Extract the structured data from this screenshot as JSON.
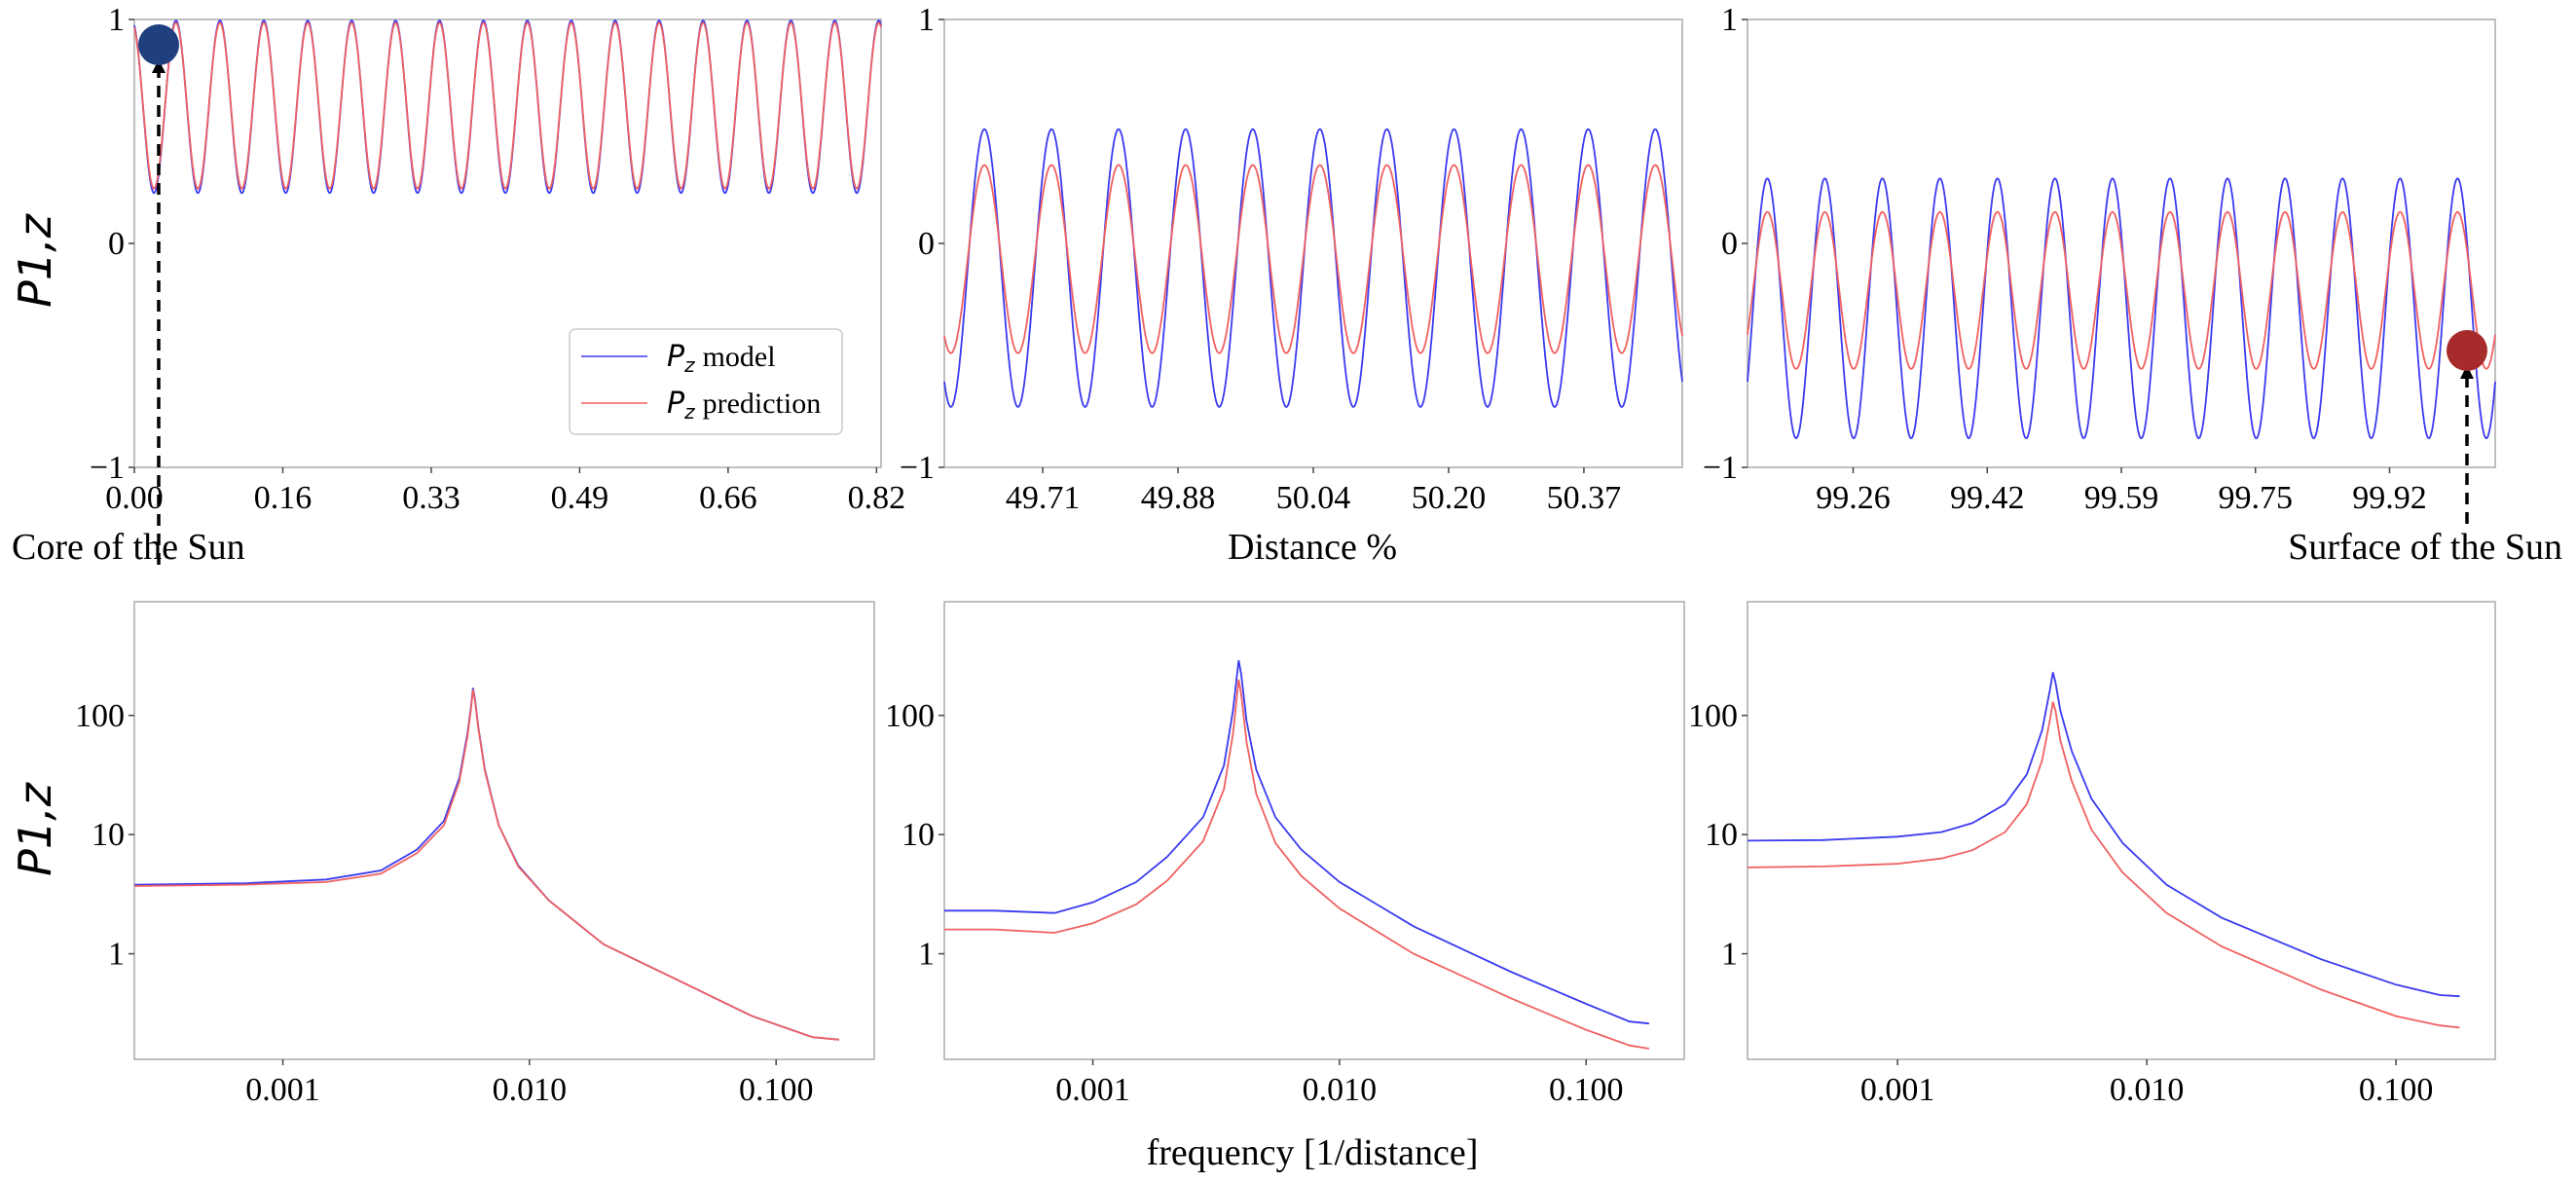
{
  "figure": {
    "ylabel_top": "P1,z",
    "ylabel_bottom": "P1,z",
    "ylabel_main": "P",
    "ylabel_sub": "1,z",
    "xlabel_top": "Distance %",
    "xlabel_bottom": "frequency [1/distance]",
    "annotation_core": "Core of the Sun",
    "annotation_surface": "Surface of the Sun",
    "colors": {
      "model": "#3a3af0",
      "prediction": "#f06060",
      "core_marker": "#1f3f7f",
      "surface_marker": "#a82b2b"
    }
  },
  "legend": {
    "model_label": "model",
    "prediction_label": "prediction",
    "symbol_main": "P",
    "symbol_sub": "z"
  },
  "chart_data": [
    {
      "type": "line",
      "id": "top-left",
      "xlim": [
        0.0,
        0.825
      ],
      "ylim": [
        -1,
        1
      ],
      "xticks": [
        "0.00",
        "0.16",
        "0.33",
        "0.49",
        "0.66",
        "0.82"
      ],
      "xtick_values": [
        0.0,
        0.164,
        0.328,
        0.492,
        0.656,
        0.82
      ],
      "yticks": [
        "-1",
        "0",
        "1"
      ],
      "ytick_values": [
        -1,
        0,
        1
      ],
      "series": [
        {
          "name": "Pz model",
          "center": 0.61,
          "amplitude": 0.385,
          "cycles": 17,
          "phase": 1.9
        },
        {
          "name": "Pz prediction",
          "center": 0.615,
          "amplitude": 0.37,
          "cycles": 17,
          "phase": 1.9
        }
      ]
    },
    {
      "type": "line",
      "id": "top-middle",
      "xlim": [
        49.59,
        50.49
      ],
      "ylim": [
        -1,
        1
      ],
      "xticks": [
        "49.71",
        "49.88",
        "50.04",
        "50.20",
        "50.37"
      ],
      "xtick_values": [
        49.71,
        49.875,
        50.04,
        50.205,
        50.37
      ],
      "yticks": [
        "-1",
        "0",
        "1"
      ],
      "ytick_values": [
        -1,
        0,
        1
      ],
      "series": [
        {
          "name": "Pz model",
          "center": -0.11,
          "amplitude": 0.62,
          "cycles": 11,
          "phase": 4.1
        },
        {
          "name": "Pz prediction",
          "center": -0.07,
          "amplitude": 0.42,
          "cycles": 11,
          "phase": 4.1
        }
      ]
    },
    {
      "type": "line",
      "id": "top-right",
      "xlim": [
        99.13,
        100.05
      ],
      "ylim": [
        -1,
        1
      ],
      "xticks": [
        "99.26",
        "99.42",
        "99.59",
        "99.75",
        "99.92"
      ],
      "xtick_values": [
        99.26,
        99.425,
        99.59,
        99.755,
        99.92
      ],
      "yticks": [
        "-1",
        "0",
        "1"
      ],
      "ytick_values": [
        -1,
        0,
        1
      ],
      "series": [
        {
          "name": "Pz model",
          "center": -0.29,
          "amplitude": 0.58,
          "cycles": 13,
          "phase": -0.6
        },
        {
          "name": "Pz prediction",
          "center": -0.21,
          "amplitude": 0.35,
          "cycles": 13,
          "phase": -0.6
        }
      ]
    },
    {
      "type": "line",
      "id": "bottom-left",
      "scale": "log",
      "xlim": [
        0.00025,
        0.25
      ],
      "ylim": [
        0.13,
        900
      ],
      "xticks": [
        "0.001",
        "0.010",
        "0.100"
      ],
      "xtick_values": [
        0.001,
        0.01,
        0.1
      ],
      "yticks": [
        "1",
        "10",
        "100"
      ],
      "ytick_values": [
        1,
        10,
        100
      ],
      "series": [
        {
          "name": "Pz model",
          "points": [
            [
              0.00025,
              3.8
            ],
            [
              0.0007,
              3.9
            ],
            [
              0.0015,
              4.2
            ],
            [
              0.0025,
              5.0
            ],
            [
              0.0035,
              7.5
            ],
            [
              0.0045,
              13
            ],
            [
              0.0052,
              30
            ],
            [
              0.0056,
              70
            ],
            [
              0.0058,
              120
            ],
            [
              0.0059,
              170
            ],
            [
              0.006,
              140
            ],
            [
              0.0062,
              80
            ],
            [
              0.0066,
              35
            ],
            [
              0.0075,
              12
            ],
            [
              0.009,
              5.5
            ],
            [
              0.012,
              2.8
            ],
            [
              0.02,
              1.2
            ],
            [
              0.04,
              0.6
            ],
            [
              0.08,
              0.3
            ],
            [
              0.14,
              0.2
            ],
            [
              0.18,
              0.19
            ]
          ]
        },
        {
          "name": "Pz prediction",
          "points": [
            [
              0.00025,
              3.7
            ],
            [
              0.0007,
              3.8
            ],
            [
              0.0015,
              4.0
            ],
            [
              0.0025,
              4.7
            ],
            [
              0.0035,
              7.0
            ],
            [
              0.0045,
              12
            ],
            [
              0.0052,
              28
            ],
            [
              0.0056,
              66
            ],
            [
              0.0058,
              115
            ],
            [
              0.0059,
              165
            ],
            [
              0.006,
              135
            ],
            [
              0.0062,
              78
            ],
            [
              0.0066,
              34
            ],
            [
              0.0075,
              12
            ],
            [
              0.009,
              5.4
            ],
            [
              0.012,
              2.8
            ],
            [
              0.02,
              1.2
            ],
            [
              0.04,
              0.6
            ],
            [
              0.08,
              0.3
            ],
            [
              0.14,
              0.2
            ],
            [
              0.18,
              0.19
            ]
          ]
        }
      ]
    },
    {
      "type": "line",
      "id": "bottom-middle",
      "scale": "log",
      "xlim": [
        0.00025,
        0.25
      ],
      "ylim": [
        0.13,
        900
      ],
      "xticks": [
        "0.001",
        "0.010",
        "0.100"
      ],
      "xtick_values": [
        0.001,
        0.01,
        0.1
      ],
      "yticks": [
        "1",
        "10",
        "100"
      ],
      "ytick_values": [
        1,
        10,
        100
      ],
      "series": [
        {
          "name": "Pz model",
          "points": [
            [
              0.00025,
              2.3
            ],
            [
              0.0004,
              2.3
            ],
            [
              0.0007,
              2.2
            ],
            [
              0.001,
              2.7
            ],
            [
              0.0015,
              4.0
            ],
            [
              0.002,
              6.5
            ],
            [
              0.0028,
              14
            ],
            [
              0.0034,
              38
            ],
            [
              0.0037,
              110
            ],
            [
              0.0039,
              290
            ],
            [
              0.004,
              220
            ],
            [
              0.0042,
              90
            ],
            [
              0.0046,
              35
            ],
            [
              0.0055,
              14
            ],
            [
              0.007,
              7.5
            ],
            [
              0.01,
              4.0
            ],
            [
              0.02,
              1.7
            ],
            [
              0.05,
              0.7
            ],
            [
              0.1,
              0.38
            ],
            [
              0.15,
              0.27
            ],
            [
              0.18,
              0.26
            ]
          ]
        },
        {
          "name": "Pz prediction",
          "points": [
            [
              0.00025,
              1.6
            ],
            [
              0.0004,
              1.6
            ],
            [
              0.0007,
              1.5
            ],
            [
              0.001,
              1.8
            ],
            [
              0.0015,
              2.6
            ],
            [
              0.002,
              4.1
            ],
            [
              0.0028,
              8.8
            ],
            [
              0.0034,
              24
            ],
            [
              0.0037,
              70
            ],
            [
              0.0039,
              200
            ],
            [
              0.004,
              150
            ],
            [
              0.0042,
              60
            ],
            [
              0.0046,
              22
            ],
            [
              0.0055,
              8.5
            ],
            [
              0.007,
              4.5
            ],
            [
              0.01,
              2.4
            ],
            [
              0.02,
              1.0
            ],
            [
              0.05,
              0.42
            ],
            [
              0.1,
              0.23
            ],
            [
              0.15,
              0.17
            ],
            [
              0.18,
              0.16
            ]
          ]
        }
      ]
    },
    {
      "type": "line",
      "id": "bottom-right",
      "scale": "log",
      "xlim": [
        0.00025,
        0.25
      ],
      "ylim": [
        0.13,
        900
      ],
      "xticks": [
        "0.001",
        "0.010",
        "0.100"
      ],
      "xtick_values": [
        0.001,
        0.01,
        0.1
      ],
      "yticks": [
        "1",
        "10",
        "100"
      ],
      "ytick_values": [
        1,
        10,
        100
      ],
      "series": [
        {
          "name": "Pz model",
          "points": [
            [
              0.00025,
              8.9
            ],
            [
              0.0005,
              9.0
            ],
            [
              0.001,
              9.6
            ],
            [
              0.0015,
              10.5
            ],
            [
              0.002,
              12.5
            ],
            [
              0.0027,
              18
            ],
            [
              0.0033,
              32
            ],
            [
              0.0038,
              75
            ],
            [
              0.0041,
              170
            ],
            [
              0.0042,
              230
            ],
            [
              0.0043,
              190
            ],
            [
              0.0045,
              110
            ],
            [
              0.005,
              50
            ],
            [
              0.006,
              20
            ],
            [
              0.008,
              8.5
            ],
            [
              0.012,
              3.8
            ],
            [
              0.02,
              2.0
            ],
            [
              0.05,
              0.9
            ],
            [
              0.1,
              0.55
            ],
            [
              0.15,
              0.45
            ],
            [
              0.18,
              0.44
            ]
          ]
        },
        {
          "name": "Pz prediction",
          "points": [
            [
              0.00025,
              5.3
            ],
            [
              0.0005,
              5.4
            ],
            [
              0.001,
              5.7
            ],
            [
              0.0015,
              6.3
            ],
            [
              0.002,
              7.4
            ],
            [
              0.0027,
              10.5
            ],
            [
              0.0033,
              18
            ],
            [
              0.0038,
              42
            ],
            [
              0.0041,
              95
            ],
            [
              0.0042,
              130
            ],
            [
              0.0043,
              110
            ],
            [
              0.0045,
              62
            ],
            [
              0.005,
              28
            ],
            [
              0.006,
              11
            ],
            [
              0.008,
              4.8
            ],
            [
              0.012,
              2.2
            ],
            [
              0.02,
              1.15
            ],
            [
              0.05,
              0.5
            ],
            [
              0.1,
              0.3
            ],
            [
              0.15,
              0.25
            ],
            [
              0.18,
              0.24
            ]
          ]
        }
      ]
    }
  ]
}
